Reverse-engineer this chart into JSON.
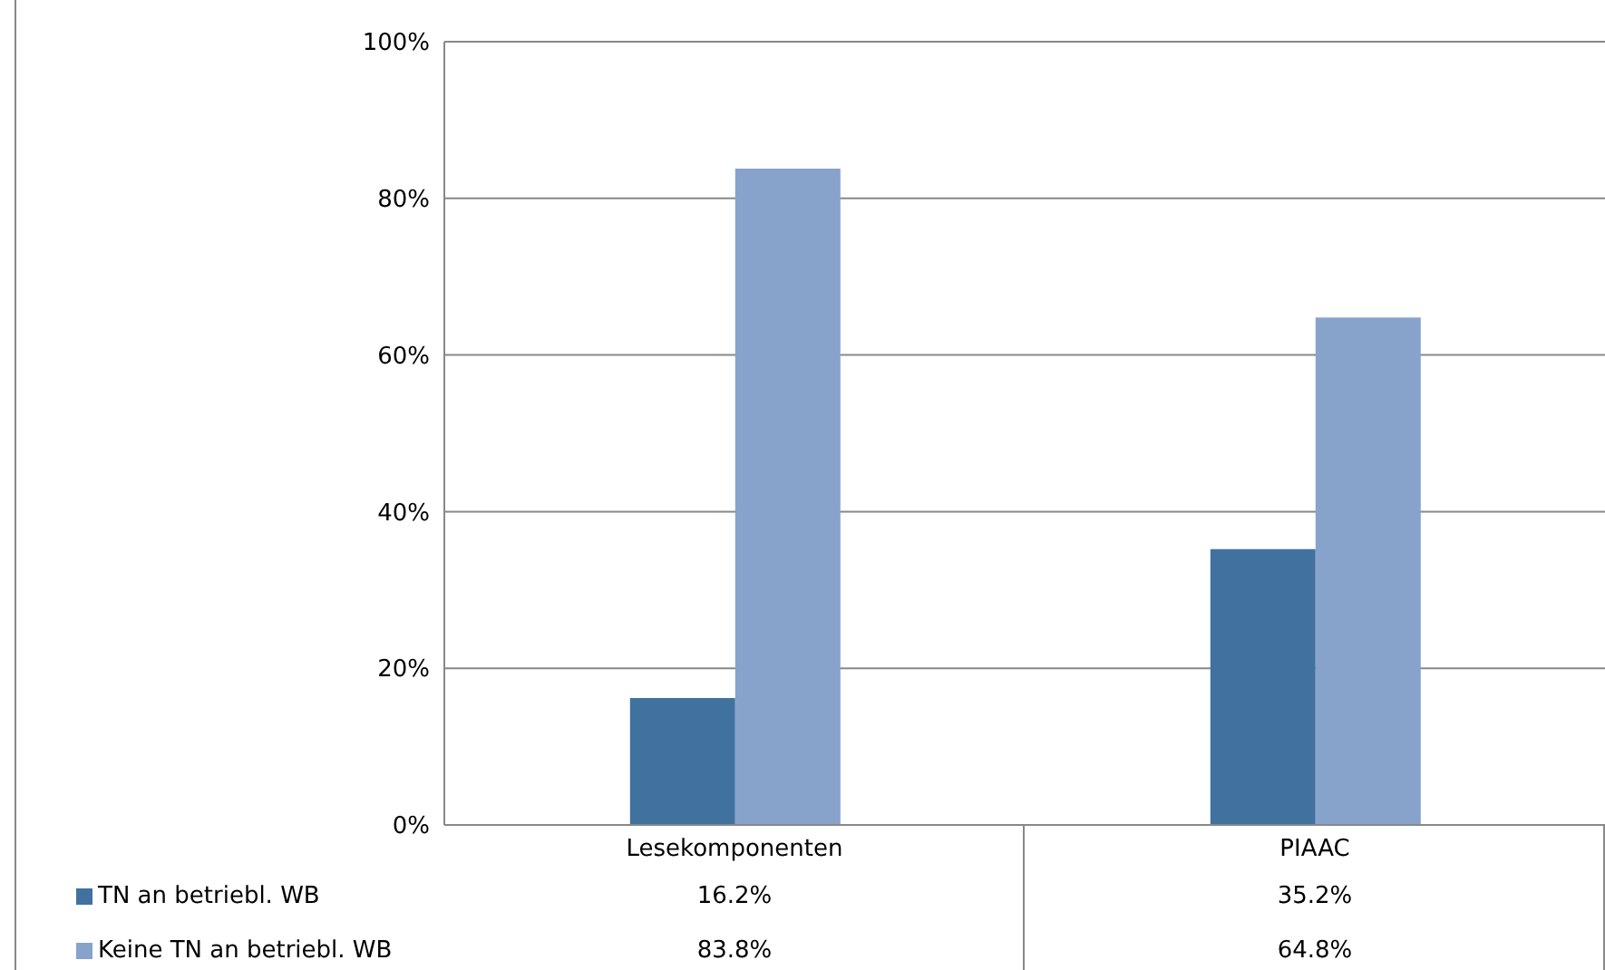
{
  "chart_data": {
    "type": "bar",
    "categories": [
      "Lesekomponenten",
      "PIAAC"
    ],
    "series": [
      {
        "name": "TN an betriebl. WB",
        "color": "#41719f",
        "values": [
          16.2,
          35.2
        ]
      },
      {
        "name": "Keine TN an betriebl. WB",
        "color": "#87a3cc",
        "values": [
          83.8,
          64.8
        ]
      }
    ],
    "ylim": [
      0,
      100
    ],
    "yticks": [
      {
        "value": 0,
        "label": "0%"
      },
      {
        "value": 20,
        "label": "20%"
      },
      {
        "value": 40,
        "label": "40%"
      },
      {
        "value": 60,
        "label": "60%"
      },
      {
        "value": 80,
        "label": "80%"
      },
      {
        "value": 100,
        "label": "100%"
      }
    ],
    "value_labels": [
      [
        "16.2%",
        "35.2%"
      ],
      [
        "83.8%",
        "64.8%"
      ]
    ],
    "grid": "y",
    "legend": "bottom left"
  }
}
